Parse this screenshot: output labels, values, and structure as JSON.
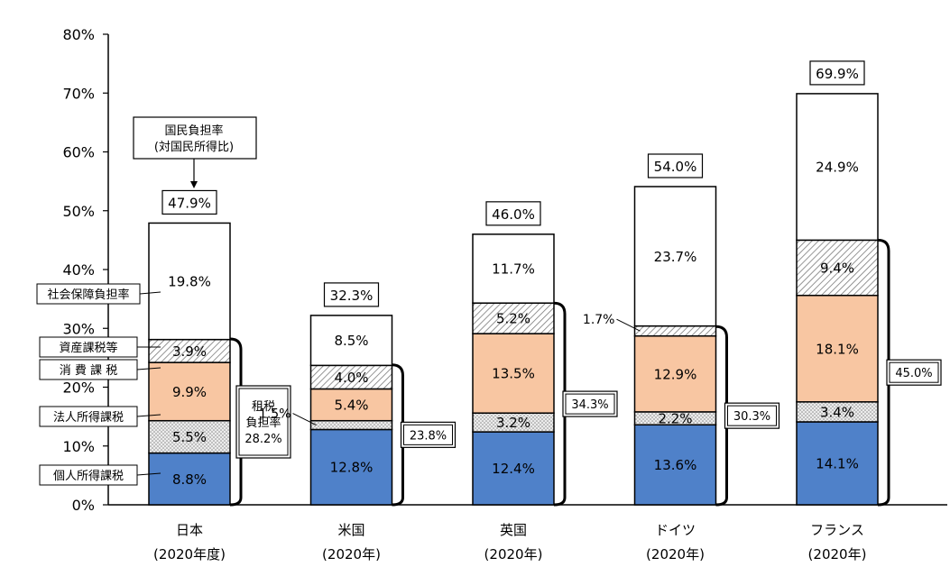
{
  "chart_data": {
    "type": "bar",
    "stacked": true,
    "title": "",
    "xlabel": "",
    "ylabel": "",
    "ylim": [
      0,
      80
    ],
    "y_ticks": [
      "0%",
      "10%",
      "20%",
      "30%",
      "40%",
      "50%",
      "60%",
      "70%",
      "80%"
    ],
    "categories": [
      {
        "name": "日本",
        "sub": "(2020年度)"
      },
      {
        "name": "米国",
        "sub": "(2020年)"
      },
      {
        "name": "英国",
        "sub": "(2020年)"
      },
      {
        "name": "ドイツ",
        "sub": "(2020年)"
      },
      {
        "name": "フランス",
        "sub": "(2020年)"
      }
    ],
    "series": [
      {
        "name": "個人所得課税",
        "color": "#4f81c9",
        "pattern": "solid",
        "values": [
          8.8,
          12.8,
          12.4,
          13.6,
          14.1
        ],
        "labels": [
          "8.8%",
          "12.8%",
          "12.4%",
          "13.6%",
          "14.1%"
        ]
      },
      {
        "name": "法人所得課税",
        "color": "#d9d9d9",
        "pattern": "dots",
        "values": [
          5.5,
          1.5,
          3.2,
          2.2,
          3.4
        ],
        "labels": [
          "5.5%",
          "1.5%",
          "3.2%",
          "2.2%",
          "3.4%"
        ]
      },
      {
        "name": "消 費 課 税",
        "color": "#f8c6a2",
        "pattern": "solid",
        "values": [
          9.9,
          5.4,
          13.5,
          12.9,
          18.1
        ],
        "labels": [
          "9.9%",
          "5.4%",
          "13.5%",
          "12.9%",
          "18.1%"
        ]
      },
      {
        "name": "資産課税等",
        "color": "#e0e0e0",
        "pattern": "hatch",
        "values": [
          3.9,
          4.0,
          5.2,
          1.7,
          9.4
        ],
        "labels": [
          "3.9%",
          "4.0%",
          "5.2%",
          "1.7%",
          "9.4%"
        ]
      },
      {
        "name": "社会保障負担率",
        "color": "#ffffff",
        "pattern": "solid",
        "values": [
          19.8,
          8.5,
          11.7,
          23.7,
          24.9
        ],
        "labels": [
          "19.8%",
          "8.5%",
          "11.7%",
          "23.7%",
          "24.9%"
        ]
      }
    ],
    "totals": [
      "47.9%",
      "32.3%",
      "46.0%",
      "54.0%",
      "69.9%"
    ],
    "tax_burden": [
      28.2,
      23.8,
      34.3,
      30.3,
      45.0
    ],
    "tax_burden_labels": [
      "28.2%",
      "23.8%",
      "34.3%",
      "30.3%",
      "45.0%"
    ],
    "tax_burden_caption": [
      "租税",
      "負担率"
    ],
    "national_burden_caption": [
      "国民負担率",
      "(対国民所得比)"
    ]
  }
}
